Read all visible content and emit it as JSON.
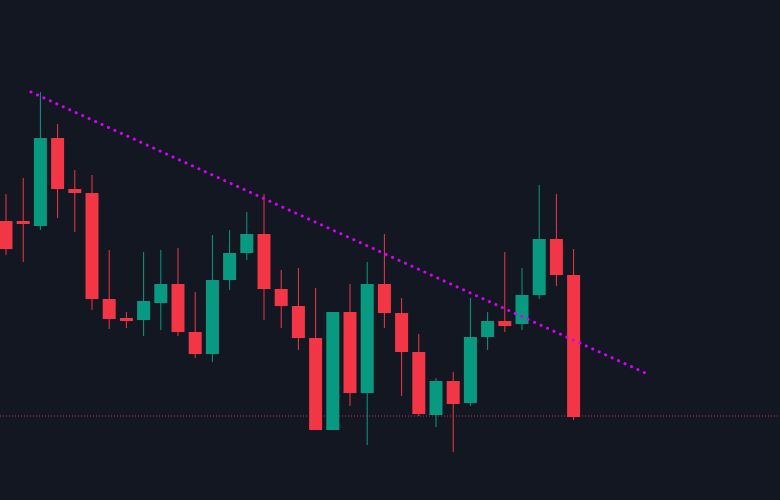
{
  "theme": {
    "background": "#131722",
    "up_color": "#089981",
    "down_color": "#f23645",
    "trendline_color": "#d500f9",
    "price_line_color": "#f23645"
  },
  "chart_data": {
    "type": "candlestick",
    "title": "",
    "xlabel": "",
    "ylabel": "",
    "grid": false,
    "ylim": [
      0,
      500
    ],
    "candles": [
      {
        "x": 0,
        "open": 279,
        "high": 306,
        "low": 245,
        "close": 251
      },
      {
        "x": 1,
        "open": 279,
        "high": 322,
        "low": 238,
        "close": 276
      },
      {
        "x": 2,
        "open": 274,
        "high": 408,
        "low": 270,
        "close": 362
      },
      {
        "x": 3,
        "open": 362,
        "high": 376,
        "low": 282,
        "close": 311
      },
      {
        "x": 4,
        "open": 311,
        "high": 330,
        "low": 268,
        "close": 307
      },
      {
        "x": 5,
        "open": 307,
        "high": 325,
        "low": 190,
        "close": 201
      },
      {
        "x": 6,
        "open": 201,
        "high": 250,
        "low": 171,
        "close": 181
      },
      {
        "x": 7,
        "open": 182,
        "high": 188,
        "low": 172,
        "close": 179
      },
      {
        "x": 8,
        "open": 180,
        "high": 248,
        "low": 164,
        "close": 199
      },
      {
        "x": 9,
        "open": 197,
        "high": 250,
        "low": 170,
        "close": 216
      },
      {
        "x": 10,
        "open": 216,
        "high": 252,
        "low": 164,
        "close": 168
      },
      {
        "x": 11,
        "open": 168,
        "high": 208,
        "low": 142,
        "close": 146
      },
      {
        "x": 12,
        "open": 146,
        "high": 265,
        "low": 138,
        "close": 220
      },
      {
        "x": 13,
        "open": 220,
        "high": 270,
        "low": 210,
        "close": 247
      },
      {
        "x": 14,
        "open": 247,
        "high": 288,
        "low": 240,
        "close": 266
      },
      {
        "x": 15,
        "open": 266,
        "high": 306,
        "low": 180,
        "close": 211
      },
      {
        "x": 16,
        "open": 211,
        "high": 230,
        "low": 172,
        "close": 194
      },
      {
        "x": 17,
        "open": 194,
        "high": 232,
        "low": 150,
        "close": 162
      },
      {
        "x": 18,
        "open": 162,
        "high": 212,
        "low": 70,
        "close": 70
      },
      {
        "x": 19,
        "open": 70,
        "high": 188,
        "low": 70,
        "close": 188
      },
      {
        "x": 20,
        "open": 188,
        "high": 216,
        "low": 94,
        "close": 107
      },
      {
        "x": 21,
        "open": 107,
        "high": 238,
        "low": 55,
        "close": 216
      },
      {
        "x": 22,
        "open": 216,
        "high": 266,
        "low": 172,
        "close": 187
      },
      {
        "x": 23,
        "open": 187,
        "high": 202,
        "low": 104,
        "close": 148
      },
      {
        "x": 24,
        "open": 148,
        "high": 166,
        "low": 84,
        "close": 86
      },
      {
        "x": 25,
        "open": 85,
        "high": 122,
        "low": 73,
        "close": 119
      },
      {
        "x": 26,
        "open": 119,
        "high": 128,
        "low": 48,
        "close": 96
      },
      {
        "x": 27,
        "open": 97,
        "high": 202,
        "low": 94,
        "close": 163
      },
      {
        "x": 28,
        "open": 163,
        "high": 188,
        "low": 150,
        "close": 179
      },
      {
        "x": 29,
        "open": 179,
        "high": 248,
        "low": 168,
        "close": 174
      },
      {
        "x": 30,
        "open": 176,
        "high": 232,
        "low": 170,
        "close": 205
      },
      {
        "x": 31,
        "open": 205,
        "high": 315,
        "low": 201,
        "close": 261
      },
      {
        "x": 32,
        "open": 261,
        "high": 306,
        "low": 214,
        "close": 225
      },
      {
        "x": 33,
        "open": 225,
        "high": 251,
        "low": 80,
        "close": 83
      }
    ],
    "trendline": {
      "style": "dotted",
      "from": {
        "x": 1.45,
        "y": 408
      },
      "to": {
        "x": 37.3,
        "y": 126
      }
    },
    "price_line": {
      "style": "dotted",
      "y": 84
    }
  }
}
